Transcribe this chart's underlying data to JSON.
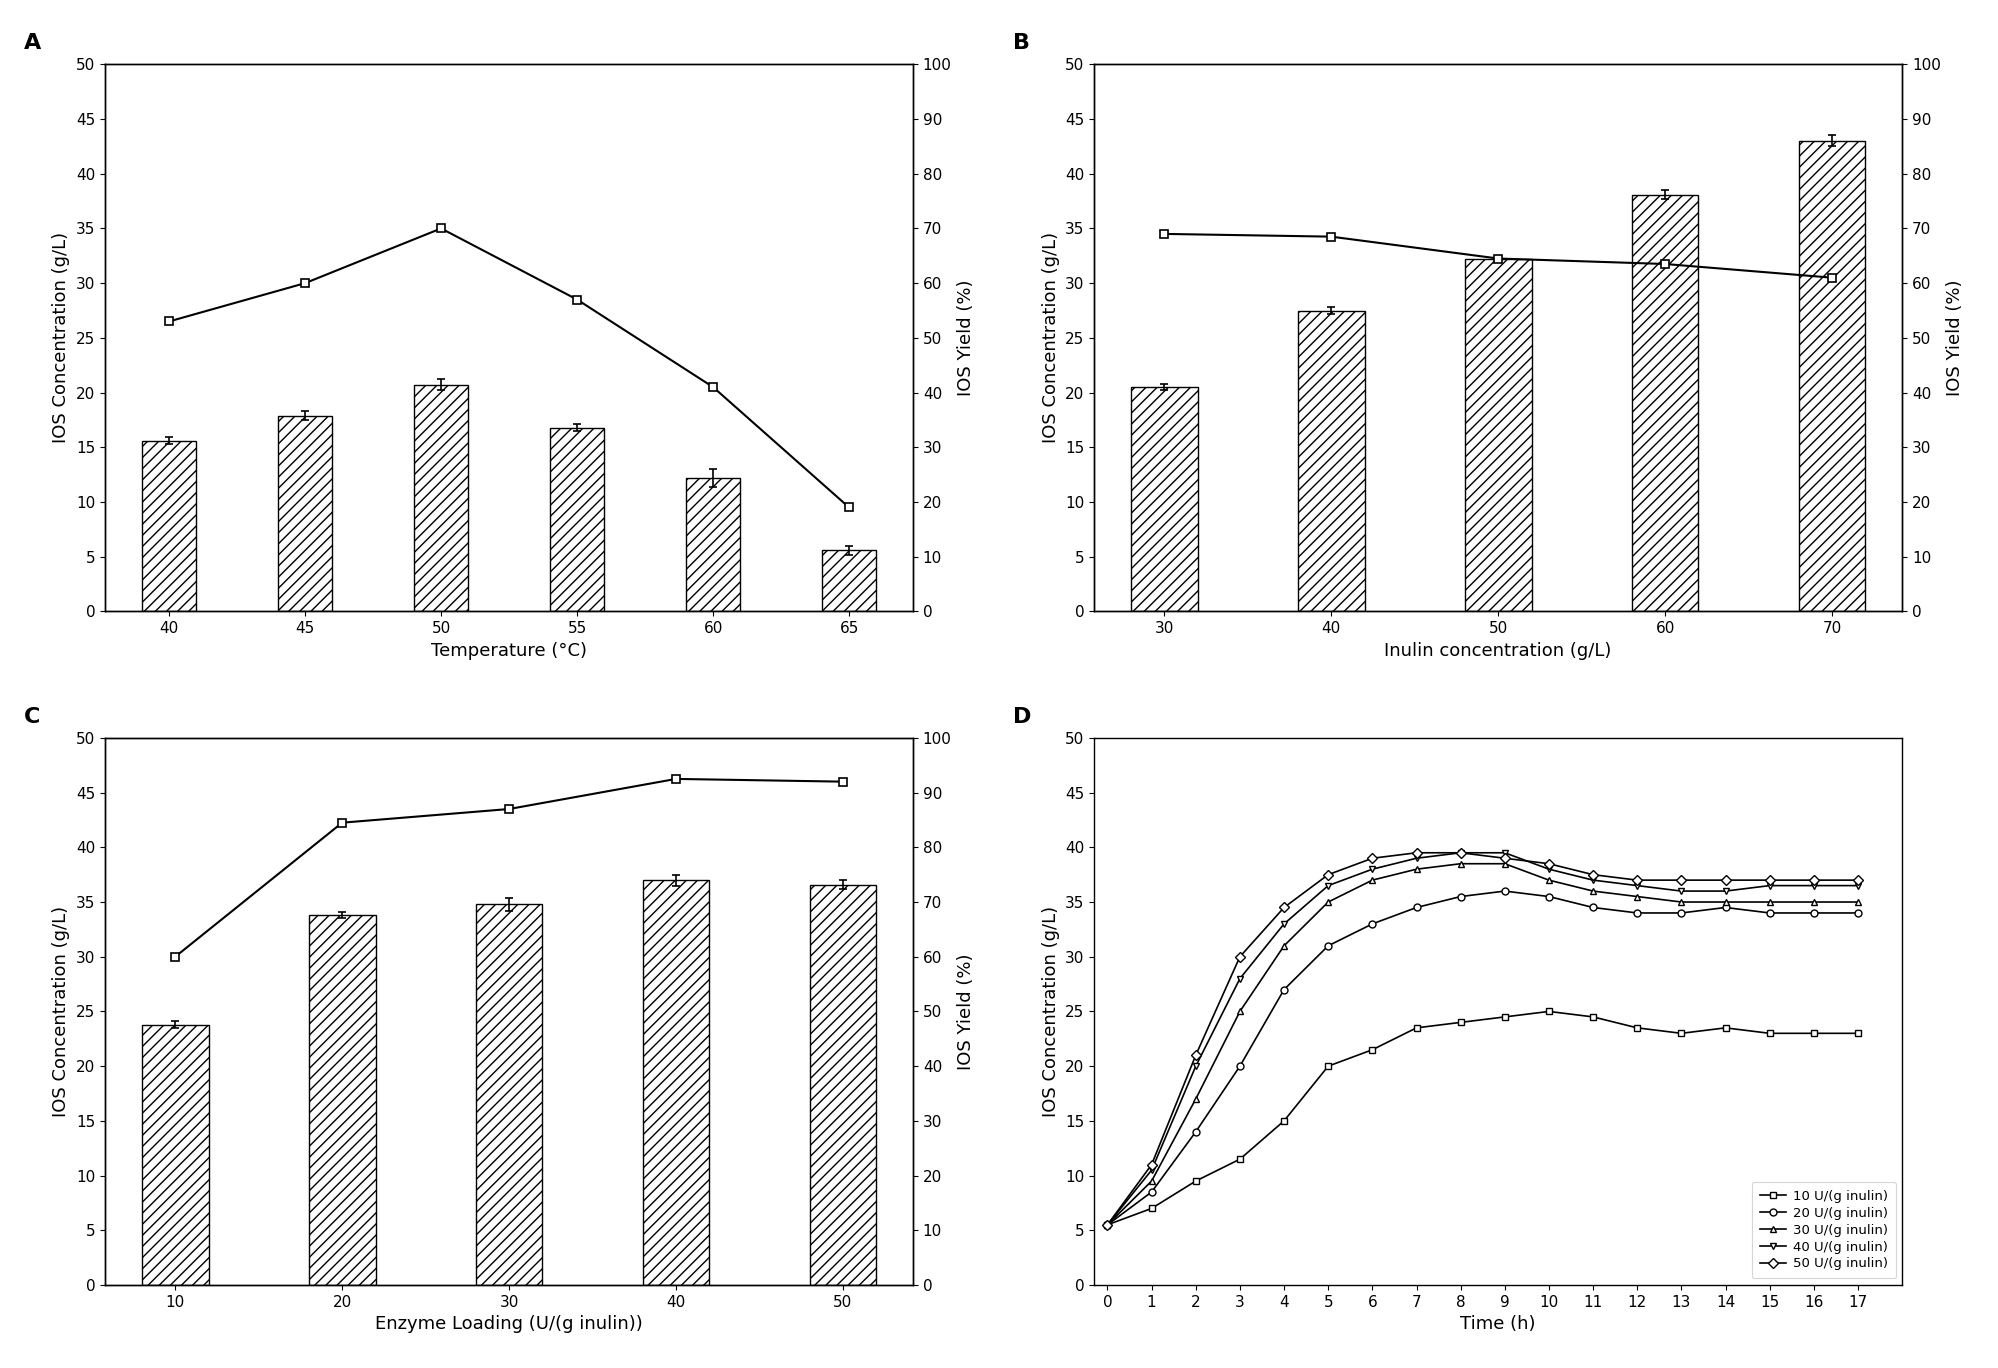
{
  "A": {
    "bar_x": [
      40,
      45,
      50,
      55,
      60,
      65
    ],
    "bar_y": [
      15.6,
      17.9,
      20.7,
      16.8,
      12.2,
      5.6
    ],
    "bar_yerr": [
      0.3,
      0.4,
      0.5,
      0.3,
      0.8,
      0.4
    ],
    "line_y": [
      53.0,
      60.0,
      70.0,
      57.0,
      41.0,
      19.0
    ],
    "xlabel": "Temperature (°C)",
    "ylabel_left": "IOS Concentration (g/L)",
    "ylabel_right": "IOS Yield (%)",
    "ylim_left": [
      0,
      50
    ],
    "ylim_right": [
      0,
      100
    ],
    "label": "A"
  },
  "B": {
    "bar_x": [
      30,
      40,
      50,
      60,
      70
    ],
    "bar_y": [
      20.5,
      27.5,
      32.2,
      38.1,
      43.0
    ],
    "bar_yerr": [
      0.3,
      0.3,
      0.3,
      0.4,
      0.5
    ],
    "line_y": [
      69.0,
      68.5,
      64.5,
      63.5,
      61.0
    ],
    "xlabel": "Inulin concentration (g/L)",
    "ylabel_left": "IOS Concentration (g/L)",
    "ylabel_right": "IOS Yield (%)",
    "ylim_left": [
      0,
      50
    ],
    "ylim_right": [
      0,
      100
    ],
    "label": "B"
  },
  "C": {
    "bar_x": [
      10,
      20,
      30,
      40,
      50
    ],
    "bar_y": [
      23.8,
      33.8,
      34.8,
      37.0,
      36.6
    ],
    "bar_yerr": [
      0.3,
      0.3,
      0.6,
      0.5,
      0.4
    ],
    "line_y": [
      60.0,
      84.5,
      87.0,
      92.5,
      92.0
    ],
    "xlabel": "Enzyme Loading (U/(g inulin))",
    "ylabel_left": "IOS Concentration (g/L)",
    "ylabel_right": "IOS Yield (%)",
    "ylim_left": [
      0,
      50
    ],
    "ylim_right": [
      0,
      100
    ],
    "label": "C"
  },
  "D": {
    "time": [
      0,
      1,
      2,
      3,
      4,
      5,
      6,
      7,
      8,
      9,
      10,
      11,
      12,
      13,
      14,
      15,
      16,
      17
    ],
    "series": {
      "10 U/(g inulin)": [
        5.5,
        7.0,
        9.5,
        11.5,
        15.0,
        20.0,
        21.5,
        23.5,
        24.0,
        24.5,
        25.0,
        24.5,
        23.5,
        23.0,
        23.5,
        23.0,
        23.0,
        23.0
      ],
      "20 U/(g inulin)": [
        5.5,
        8.5,
        14.0,
        20.0,
        27.0,
        31.0,
        33.0,
        34.5,
        35.5,
        36.0,
        35.5,
        34.5,
        34.0,
        34.0,
        34.5,
        34.0,
        34.0,
        34.0
      ],
      "30 U/(g inulin)": [
        5.5,
        9.5,
        17.0,
        25.0,
        31.0,
        35.0,
        37.0,
        38.0,
        38.5,
        38.5,
        37.0,
        36.0,
        35.5,
        35.0,
        35.0,
        35.0,
        35.0,
        35.0
      ],
      "40 U/(g inulin)": [
        5.5,
        10.5,
        20.0,
        28.0,
        33.0,
        36.5,
        38.0,
        39.0,
        39.5,
        39.5,
        38.0,
        37.0,
        36.5,
        36.0,
        36.0,
        36.5,
        36.5,
        36.5
      ],
      "50 U/(g inulin)": [
        5.5,
        11.0,
        21.0,
        30.0,
        34.5,
        37.5,
        39.0,
        39.5,
        39.5,
        39.0,
        38.5,
        37.5,
        37.0,
        37.0,
        37.0,
        37.0,
        37.0,
        37.0
      ]
    },
    "markers": [
      "s",
      "o",
      "^",
      "v",
      "D"
    ],
    "xlabel": "Time (h)",
    "ylabel_left": "IOS Concentration (g/L)",
    "ylim_left": [
      0,
      50
    ],
    "label": "D"
  },
  "line_color": "#000000",
  "bar_facecolor": "#ffffff",
  "bar_hatch": "///",
  "bar_edgecolor": "#000000",
  "background_color": "#ffffff",
  "tick_fontsize": 11,
  "axis_label_fontsize": 13,
  "panel_label_fontsize": 16
}
